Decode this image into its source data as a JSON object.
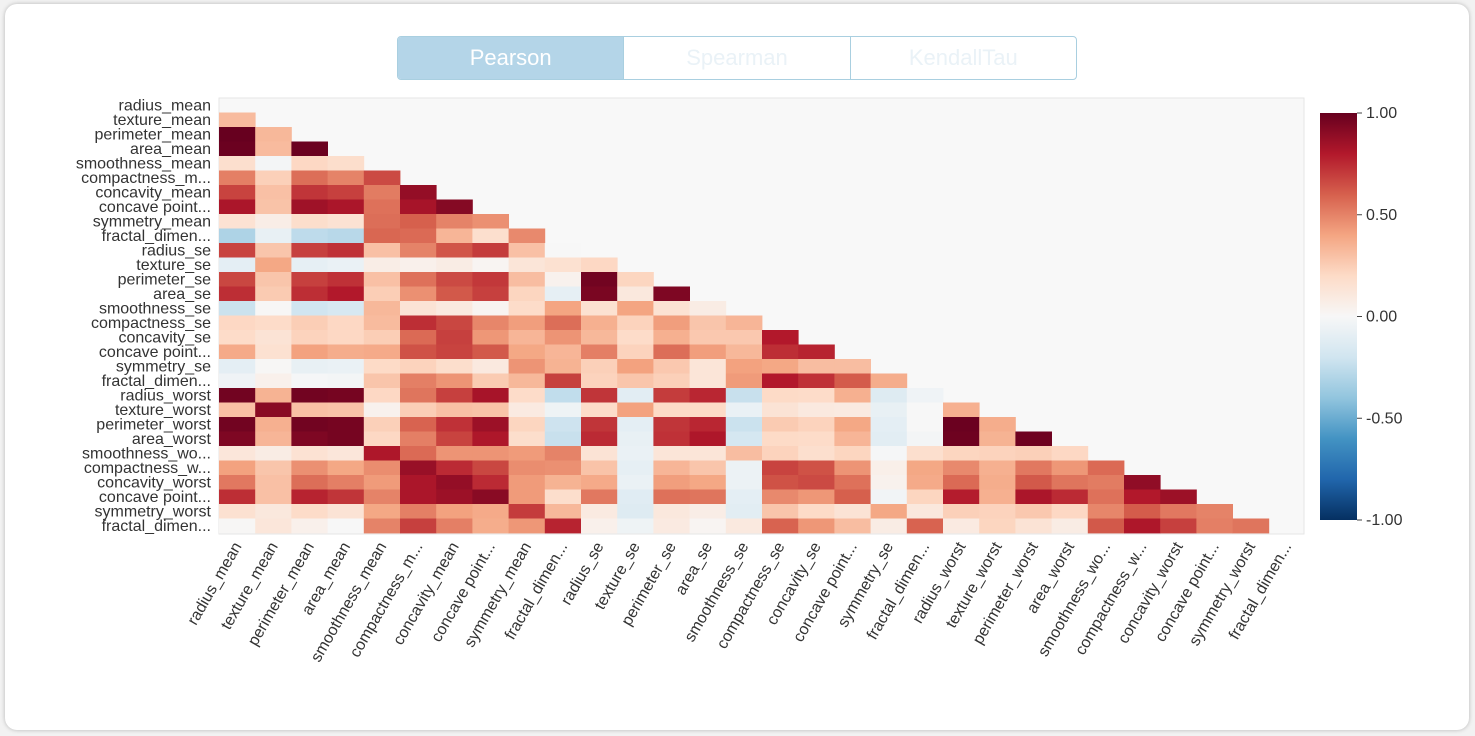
{
  "tabs": [
    {
      "label": "Pearson",
      "active": true
    },
    {
      "label": "Spearman",
      "active": false
    },
    {
      "label": "KendallTau",
      "active": false
    }
  ],
  "chart_data": {
    "type": "heatmap",
    "title": "",
    "labels": [
      "radius_mean",
      "texture_mean",
      "perimeter_mean",
      "area_mean",
      "smoothness_mean",
      "compactness_m...",
      "concavity_mean",
      "concave point...",
      "symmetry_mean",
      "fractal_dimen...",
      "radius_se",
      "texture_se",
      "perimeter_se",
      "area_se",
      "smoothness_se",
      "compactness_se",
      "concavity_se",
      "concave point...",
      "symmetry_se",
      "fractal_dimen...",
      "radius_worst",
      "texture_worst",
      "perimeter_worst",
      "area_worst",
      "smoothness_wo...",
      "compactness_w...",
      "concavity_worst",
      "concave point...",
      "symmetry_worst",
      "fractal_dimen..."
    ],
    "values": [
      [],
      [
        0.32
      ],
      [
        1.0,
        0.33
      ],
      [
        0.99,
        0.32,
        0.99
      ],
      [
        0.17,
        -0.02,
        0.21,
        0.18
      ],
      [
        0.51,
        0.24,
        0.56,
        0.5,
        0.66
      ],
      [
        0.68,
        0.3,
        0.72,
        0.69,
        0.52,
        0.88
      ],
      [
        0.82,
        0.29,
        0.85,
        0.82,
        0.55,
        0.83,
        0.92
      ],
      [
        0.15,
        0.07,
        0.18,
        0.15,
        0.56,
        0.6,
        0.5,
        0.46
      ],
      [
        -0.31,
        -0.08,
        -0.26,
        -0.28,
        0.58,
        0.57,
        0.34,
        0.17,
        0.48
      ],
      [
        0.68,
        0.28,
        0.69,
        0.73,
        0.3,
        0.5,
        0.63,
        0.7,
        0.3,
        0.0
      ],
      [
        -0.1,
        0.39,
        -0.09,
        -0.07,
        0.07,
        0.05,
        0.08,
        0.02,
        0.13,
        0.16,
        0.21
      ],
      [
        0.67,
        0.28,
        0.69,
        0.73,
        0.3,
        0.55,
        0.66,
        0.71,
        0.31,
        0.04,
        0.97,
        0.22
      ],
      [
        0.74,
        0.26,
        0.74,
        0.8,
        0.25,
        0.46,
        0.62,
        0.69,
        0.22,
        -0.09,
        0.95,
        0.11,
        0.94
      ],
      [
        -0.22,
        0.01,
        -0.2,
        -0.17,
        0.33,
        0.14,
        0.1,
        0.03,
        0.19,
        0.4,
        0.16,
        0.4,
        0.15,
        0.08
      ],
      [
        0.21,
        0.19,
        0.25,
        0.21,
        0.32,
        0.74,
        0.67,
        0.49,
        0.42,
        0.56,
        0.36,
        0.23,
        0.42,
        0.28,
        0.34
      ],
      [
        0.19,
        0.14,
        0.23,
        0.21,
        0.25,
        0.57,
        0.69,
        0.44,
        0.34,
        0.45,
        0.33,
        0.19,
        0.36,
        0.27,
        0.27,
        0.8
      ],
      [
        0.38,
        0.16,
        0.41,
        0.37,
        0.38,
        0.64,
        0.68,
        0.62,
        0.39,
        0.34,
        0.51,
        0.23,
        0.56,
        0.42,
        0.33,
        0.74,
        0.77
      ],
      [
        -0.1,
        0.01,
        -0.08,
        -0.07,
        0.2,
        0.23,
        0.18,
        0.1,
        0.45,
        0.35,
        0.24,
        0.41,
        0.27,
        0.13,
        0.41,
        0.39,
        0.31,
        0.31
      ],
      [
        -0.04,
        0.05,
        -0.01,
        -0.02,
        0.28,
        0.51,
        0.45,
        0.26,
        0.33,
        0.69,
        0.23,
        0.28,
        0.24,
        0.13,
        0.43,
        0.8,
        0.73,
        0.61,
        0.37
      ],
      [
        0.97,
        0.35,
        0.97,
        0.96,
        0.21,
        0.54,
        0.69,
        0.83,
        0.19,
        -0.25,
        0.72,
        -0.11,
        0.7,
        0.76,
        -0.23,
        0.2,
        0.19,
        0.36,
        -0.13,
        -0.04
      ],
      [
        0.3,
        0.91,
        0.3,
        0.29,
        0.04,
        0.25,
        0.3,
        0.29,
        0.09,
        -0.05,
        0.19,
        0.41,
        0.2,
        0.2,
        -0.07,
        0.14,
        0.1,
        0.09,
        -0.08,
        -0.0,
        0.36
      ],
      [
        0.97,
        0.36,
        0.97,
        0.96,
        0.24,
        0.59,
        0.73,
        0.86,
        0.22,
        -0.21,
        0.72,
        -0.1,
        0.72,
        0.76,
        -0.22,
        0.26,
        0.23,
        0.39,
        -0.1,
        -0.0,
        0.99,
        0.37
      ],
      [
        0.94,
        0.34,
        0.94,
        0.96,
        0.21,
        0.51,
        0.68,
        0.81,
        0.18,
        -0.23,
        0.75,
        -0.08,
        0.73,
        0.81,
        -0.18,
        0.2,
        0.19,
        0.34,
        -0.11,
        -0.02,
        0.98,
        0.35,
        0.98
      ],
      [
        0.12,
        0.08,
        0.15,
        0.12,
        0.81,
        0.57,
        0.45,
        0.45,
        0.43,
        0.5,
        0.14,
        -0.07,
        0.13,
        0.13,
        0.31,
        0.23,
        0.17,
        0.22,
        -0.01,
        0.17,
        0.22,
        0.23,
        0.24,
        0.21
      ],
      [
        0.41,
        0.28,
        0.46,
        0.39,
        0.47,
        0.87,
        0.75,
        0.67,
        0.47,
        0.46,
        0.29,
        -0.09,
        0.34,
        0.28,
        -0.06,
        0.68,
        0.64,
        0.45,
        0.06,
        0.39,
        0.48,
        0.36,
        0.53,
        0.44,
        0.57
      ],
      [
        0.53,
        0.3,
        0.56,
        0.51,
        0.43,
        0.82,
        0.88,
        0.75,
        0.43,
        0.35,
        0.38,
        -0.07,
        0.42,
        0.39,
        -0.06,
        0.64,
        0.66,
        0.55,
        0.04,
        0.38,
        0.57,
        0.37,
        0.62,
        0.54,
        0.52,
        0.89
      ],
      [
        0.74,
        0.3,
        0.77,
        0.72,
        0.5,
        0.82,
        0.86,
        0.91,
        0.43,
        0.18,
        0.53,
        -0.12,
        0.55,
        0.54,
        -0.1,
        0.48,
        0.44,
        0.6,
        -0.03,
        0.22,
        0.79,
        0.36,
        0.82,
        0.75,
        0.55,
        0.8,
        0.86
      ],
      [
        0.16,
        0.11,
        0.19,
        0.14,
        0.39,
        0.51,
        0.41,
        0.38,
        0.7,
        0.33,
        0.09,
        -0.13,
        0.11,
        0.07,
        -0.11,
        0.28,
        0.2,
        0.14,
        0.39,
        0.11,
        0.24,
        0.23,
        0.27,
        0.21,
        0.49,
        0.61,
        0.53,
        0.5
      ],
      [
        0.01,
        0.12,
        0.05,
        0.0,
        0.5,
        0.69,
        0.51,
        0.37,
        0.44,
        0.77,
        0.05,
        -0.05,
        0.09,
        0.02,
        0.1,
        0.59,
        0.44,
        0.31,
        0.08,
        0.59,
        0.09,
        0.22,
        0.14,
        0.08,
        0.62,
        0.81,
        0.69,
        0.51,
        0.54
      ]
    ],
    "colorscale": {
      "min": -1,
      "max": 1,
      "ticks": [
        "1.00",
        "0.50",
        "0.00",
        "-0.50",
        "-1.00"
      ],
      "colors": [
        "#053061",
        "#2166ac",
        "#4393c3",
        "#92c5de",
        "#d1e5f0",
        "#f7f7f7",
        "#fddbc7",
        "#f4a582",
        "#d6604d",
        "#b2182b",
        "#67001f"
      ]
    },
    "background": "#f8f8f8"
  }
}
